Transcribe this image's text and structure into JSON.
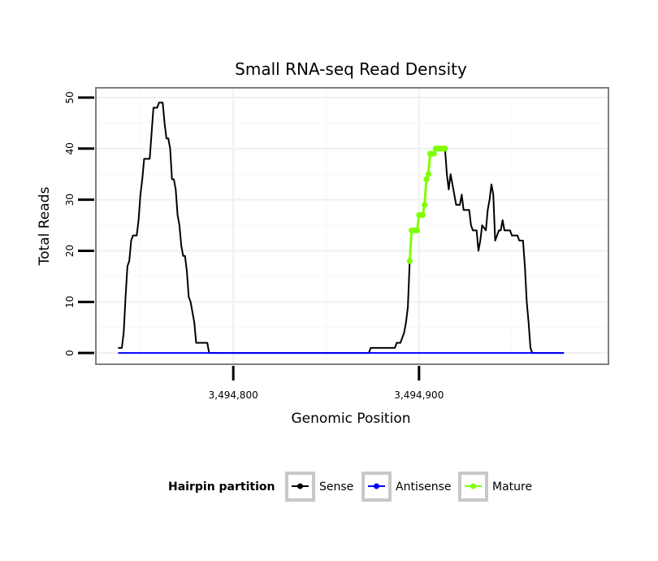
{
  "chart_data": {
    "type": "line",
    "title": "Small RNA-seq Read Density",
    "xlabel": "Genomic Position",
    "ylabel": "Total Reads",
    "xlim": [
      3494726,
      3495002
    ],
    "ylim": [
      -2.2,
      51.9
    ],
    "x_ticks": [
      3494800,
      3494900
    ],
    "x_tick_labels": [
      "3,494,800",
      "3,494,900"
    ],
    "y_ticks": [
      0,
      10,
      20,
      30,
      40,
      50
    ],
    "y_tick_labels": [
      "0",
      "10",
      "20",
      "30",
      "40",
      "50"
    ],
    "grid": true,
    "legend": {
      "title": "Hairpin partition",
      "position": "bottom",
      "entries": [
        "Sense",
        "Antisense",
        "Mature"
      ]
    },
    "series": [
      {
        "name": "Sense",
        "color": "#000000",
        "points": [
          [
            3494738,
            1
          ],
          [
            3494740,
            1
          ],
          [
            3494741,
            4
          ],
          [
            3494742,
            11
          ],
          [
            3494743,
            17
          ],
          [
            3494744,
            18
          ],
          [
            3494745,
            22
          ],
          [
            3494746,
            23
          ],
          [
            3494748,
            23
          ],
          [
            3494749,
            26
          ],
          [
            3494750,
            31
          ],
          [
            3494751,
            34
          ],
          [
            3494752,
            38
          ],
          [
            3494755,
            38
          ],
          [
            3494756,
            43
          ],
          [
            3494757,
            48
          ],
          [
            3494759,
            48
          ],
          [
            3494760,
            49
          ],
          [
            3494762,
            49
          ],
          [
            3494763,
            45
          ],
          [
            3494764,
            42
          ],
          [
            3494765,
            42
          ],
          [
            3494766,
            40
          ],
          [
            3494767,
            34
          ],
          [
            3494768,
            34
          ],
          [
            3494769,
            32
          ],
          [
            3494770,
            27
          ],
          [
            3494771,
            25
          ],
          [
            3494772,
            21
          ],
          [
            3494773,
            19
          ],
          [
            3494774,
            19
          ],
          [
            3494775,
            16
          ],
          [
            3494776,
            11
          ],
          [
            3494777,
            10
          ],
          [
            3494778,
            8
          ],
          [
            3494779,
            6
          ],
          [
            3494780,
            2
          ],
          [
            3494786,
            2
          ],
          [
            3494787,
            0
          ],
          [
            3494873,
            0
          ],
          [
            3494874,
            1
          ],
          [
            3494887,
            1
          ],
          [
            3494888,
            2
          ],
          [
            3494890,
            2
          ],
          [
            3494891,
            3
          ],
          [
            3494892,
            4
          ],
          [
            3494893,
            6
          ],
          [
            3494894,
            9
          ],
          [
            3494895,
            18
          ],
          [
            3494896,
            24
          ],
          [
            3494898,
            24
          ],
          [
            3494899,
            24
          ],
          [
            3494900,
            27
          ],
          [
            3494902,
            27
          ],
          [
            3494903,
            29
          ],
          [
            3494904,
            34
          ],
          [
            3494905,
            35
          ],
          [
            3494906,
            39
          ],
          [
            3494908,
            39
          ],
          [
            3494909,
            40
          ],
          [
            3494914,
            40
          ],
          [
            3494915,
            35
          ],
          [
            3494916,
            32
          ],
          [
            3494917,
            35
          ],
          [
            3494919,
            31
          ],
          [
            3494920,
            29
          ],
          [
            3494922,
            29
          ],
          [
            3494923,
            31
          ],
          [
            3494924,
            28
          ],
          [
            3494927,
            28
          ],
          [
            3494928,
            25
          ],
          [
            3494929,
            24
          ],
          [
            3494931,
            24
          ],
          [
            3494932,
            20
          ],
          [
            3494933,
            22
          ],
          [
            3494934,
            25
          ],
          [
            3494936,
            24
          ],
          [
            3494937,
            28
          ],
          [
            3494938,
            30
          ],
          [
            3494939,
            33
          ],
          [
            3494940,
            31
          ],
          [
            3494941,
            22
          ],
          [
            3494942,
            23
          ],
          [
            3494943,
            24
          ],
          [
            3494944,
            24
          ],
          [
            3494945,
            26
          ],
          [
            3494946,
            24
          ],
          [
            3494949,
            24
          ],
          [
            3494950,
            23
          ],
          [
            3494953,
            23
          ],
          [
            3494954,
            22
          ],
          [
            3494956,
            22
          ],
          [
            3494957,
            17
          ],
          [
            3494958,
            10
          ],
          [
            3494959,
            6
          ],
          [
            3494960,
            1
          ],
          [
            3494961,
            0
          ],
          [
            3494978,
            0
          ]
        ]
      },
      {
        "name": "Antisense",
        "color": "#0000ff",
        "points": [
          [
            3494738,
            0
          ],
          [
            3494978,
            0
          ]
        ]
      },
      {
        "name": "Mature",
        "color": "#7fff00",
        "points": [
          [
            3494895,
            18
          ],
          [
            3494896,
            24
          ],
          [
            3494897,
            24
          ],
          [
            3494898,
            24
          ],
          [
            3494899,
            24
          ],
          [
            3494900,
            27
          ],
          [
            3494901,
            27
          ],
          [
            3494902,
            27
          ],
          [
            3494903,
            29
          ],
          [
            3494904,
            34
          ],
          [
            3494905,
            35
          ],
          [
            3494906,
            39
          ],
          [
            3494907,
            39
          ],
          [
            3494908,
            39
          ],
          [
            3494909,
            40
          ],
          [
            3494910,
            40
          ],
          [
            3494911,
            40
          ],
          [
            3494912,
            40
          ],
          [
            3494913,
            40
          ],
          [
            3494914,
            40
          ]
        ]
      }
    ]
  }
}
